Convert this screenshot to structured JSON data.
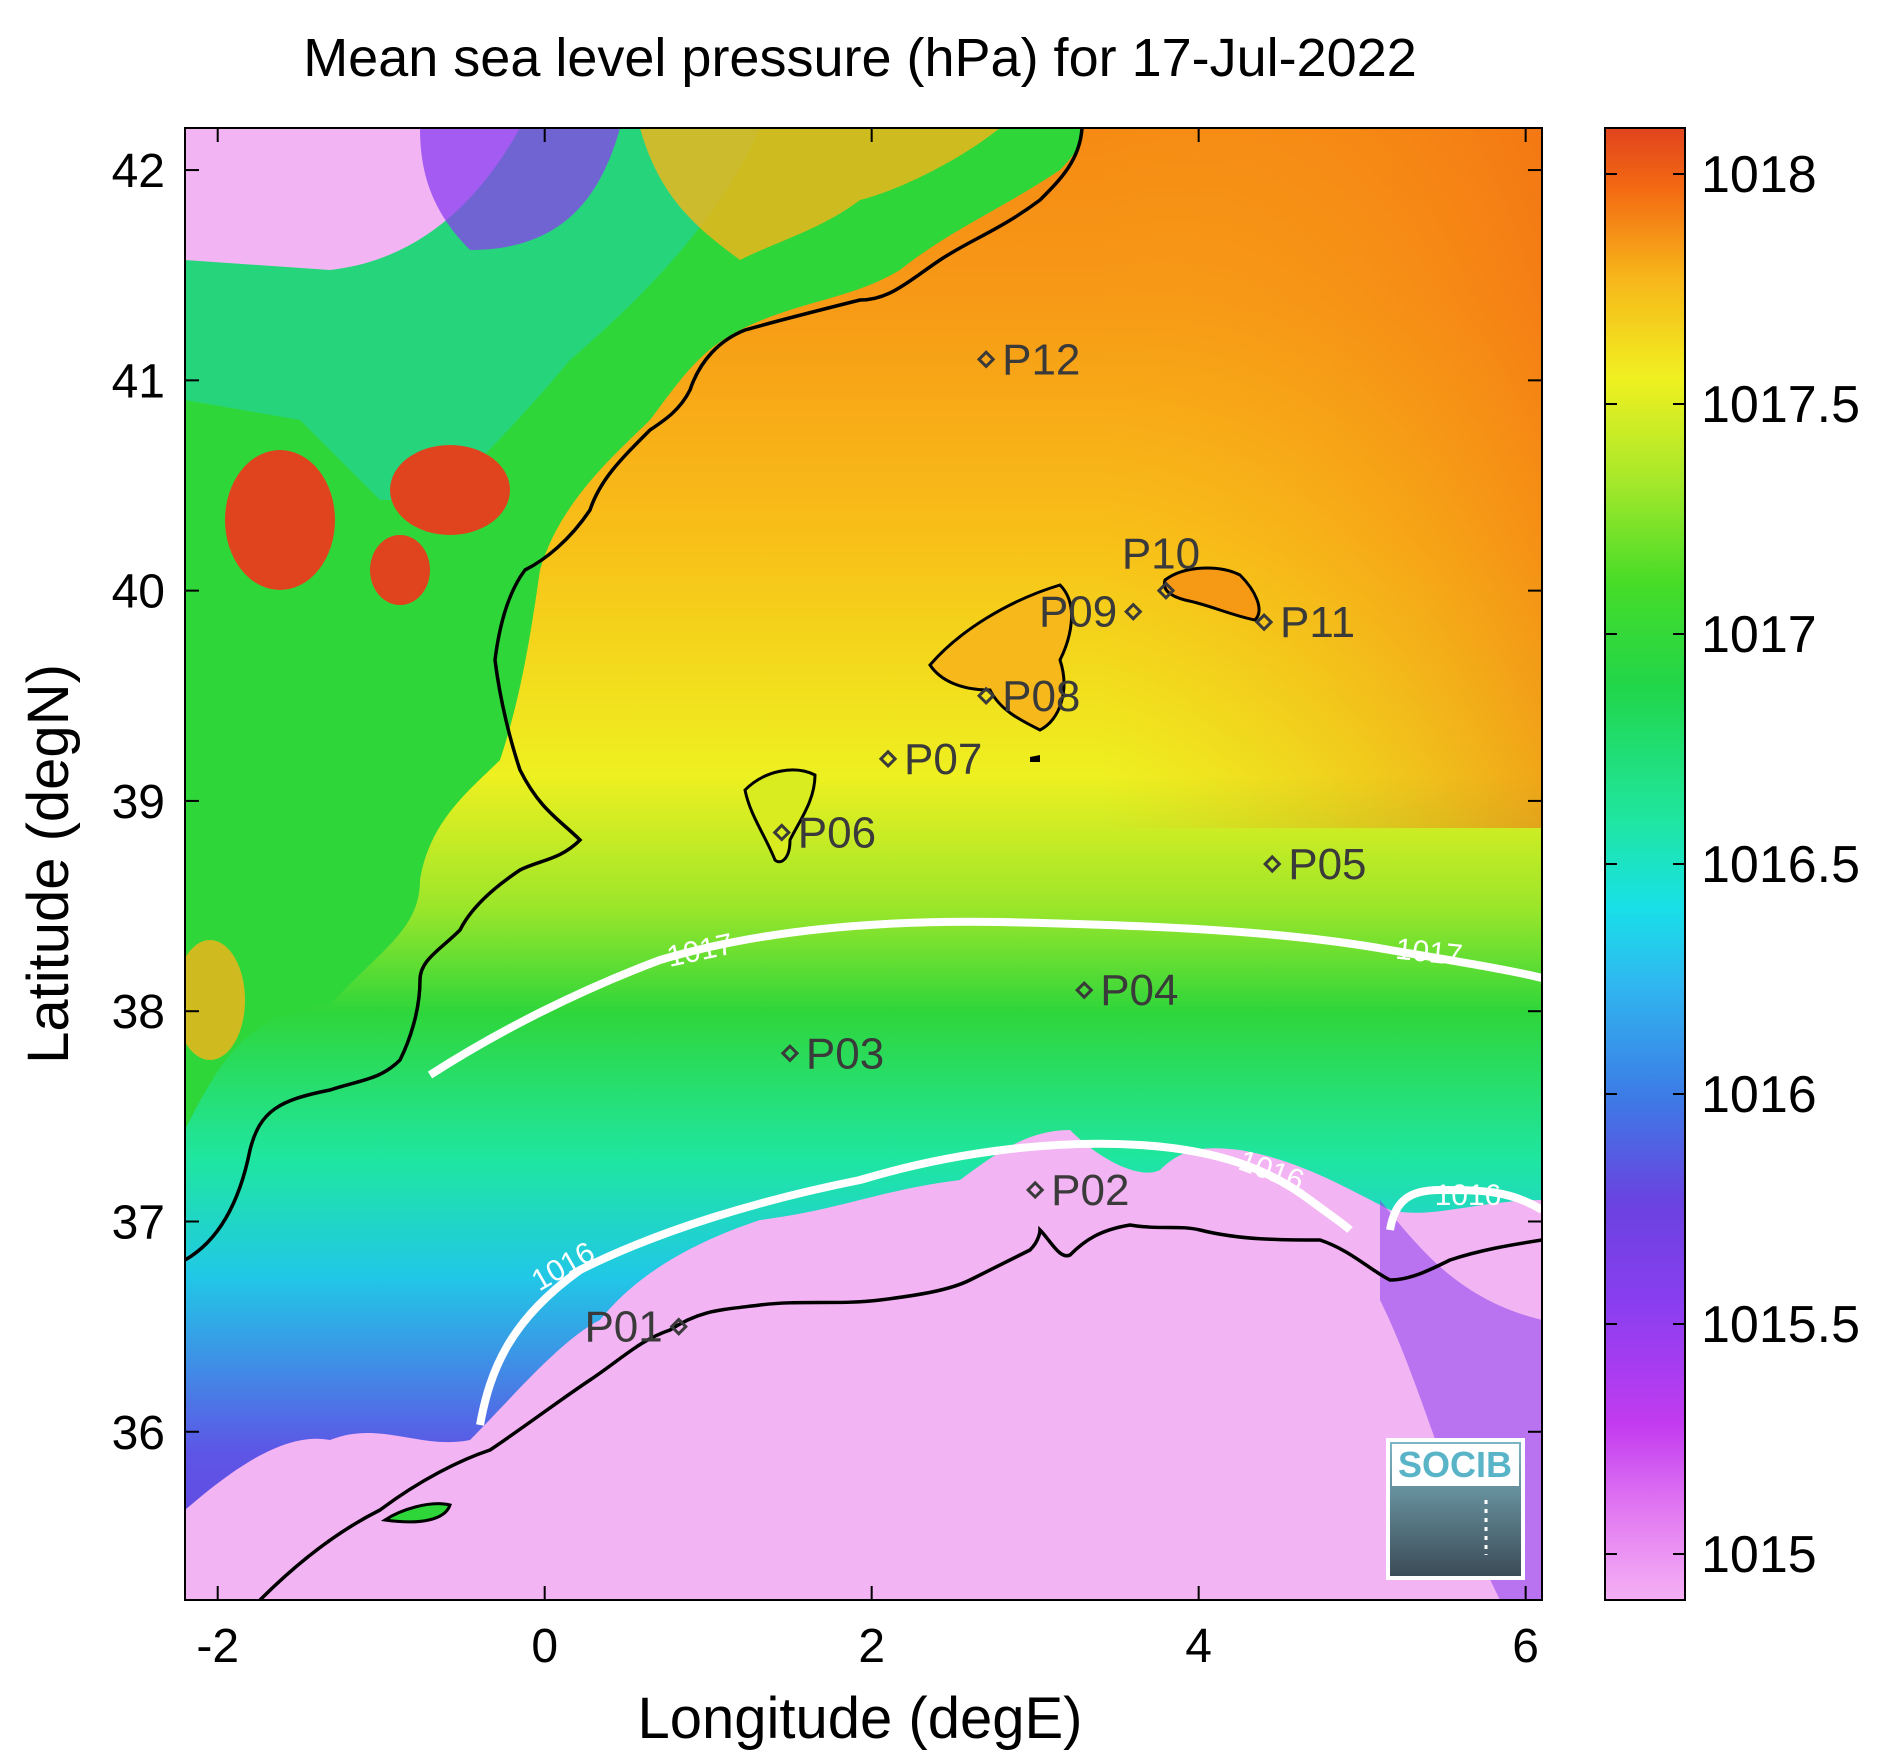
{
  "title": "Mean sea level pressure (hPa) for 17-Jul-2022",
  "xlabel": "Longitude (degE)",
  "ylabel": "Latitude (degN)",
  "xlim": [
    -2.2,
    6.1
  ],
  "ylim": [
    35.2,
    42.2
  ],
  "x_ticks": [
    "-2",
    "0",
    "2",
    "4",
    "6"
  ],
  "y_ticks": [
    "36",
    "37",
    "38",
    "39",
    "40",
    "41",
    "42"
  ],
  "colorbar": {
    "range": [
      1014.9,
      1018.1
    ],
    "ticks": [
      "1015",
      "1015.5",
      "1016",
      "1016.5",
      "1017",
      "1017.5",
      "1018"
    ],
    "colors": [
      "#f5b0f5",
      "#c23bf0",
      "#6a42e0",
      "#2f8ee6",
      "#18e0e8",
      "#21d67a",
      "#2fdc2a",
      "#8ee62a",
      "#f0f020",
      "#f7a81a",
      "#f36812",
      "#e0441e"
    ]
  },
  "contours": [
    {
      "level": "1016",
      "label": "1016"
    },
    {
      "level": "1017",
      "label": "1017"
    }
  ],
  "stations": [
    {
      "id": "P01",
      "lon": 0.82,
      "lat": 36.5
    },
    {
      "id": "P02",
      "lon": 3.0,
      "lat": 37.15
    },
    {
      "id": "P03",
      "lon": 1.5,
      "lat": 37.8
    },
    {
      "id": "P04",
      "lon": 3.3,
      "lat": 38.1
    },
    {
      "id": "P05",
      "lon": 4.45,
      "lat": 38.7
    },
    {
      "id": "P06",
      "lon": 1.45,
      "lat": 38.85
    },
    {
      "id": "P07",
      "lon": 2.1,
      "lat": 39.2
    },
    {
      "id": "P08",
      "lon": 2.7,
      "lat": 39.5
    },
    {
      "id": "P09",
      "lon": 3.6,
      "lat": 39.9
    },
    {
      "id": "P10",
      "lon": 3.8,
      "lat": 40.0
    },
    {
      "id": "P11",
      "lon": 4.4,
      "lat": 39.85
    },
    {
      "id": "P12",
      "lon": 2.7,
      "lat": 41.1
    }
  ],
  "logo_text": "SOCIB"
}
